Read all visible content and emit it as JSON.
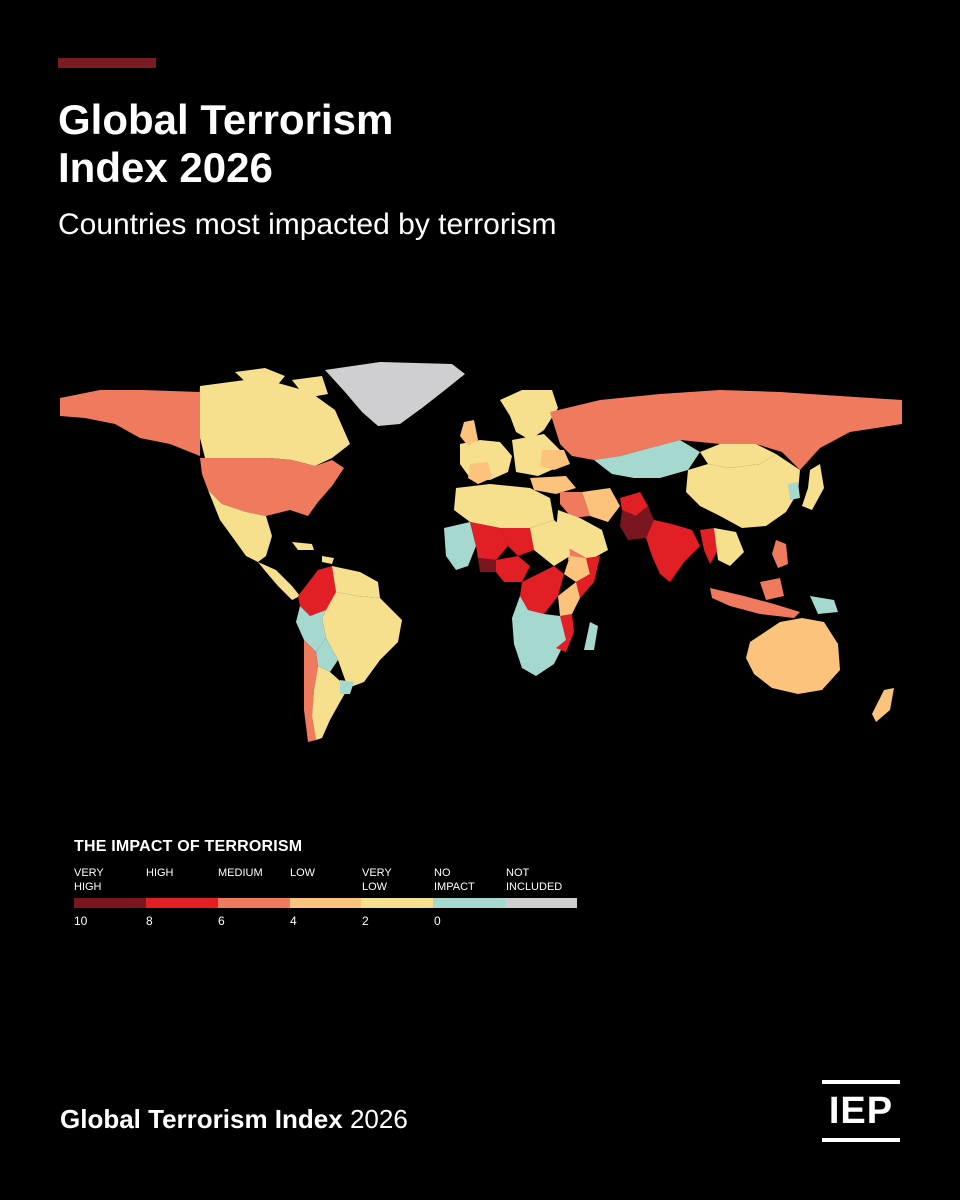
{
  "header": {
    "title_line1": "Global Terrorism",
    "title_line2": "Index 2026",
    "subtitle": "Countries most impacted by terrorism"
  },
  "colors": {
    "accent_bar": "#7a1c22",
    "very_high": "#7a1620",
    "high": "#e31f26",
    "medium": "#f07a5e",
    "low": "#fbc37c",
    "very_low": "#f6e08d",
    "no_impact": "#a5d9d0",
    "not_included": "#cfcfd2"
  },
  "legend": {
    "title": "THE IMPACT OF TERRORISM",
    "categories": [
      {
        "label_line1": "VERY",
        "label_line2": "HIGH"
      },
      {
        "label_line1": "HIGH",
        "label_line2": ""
      },
      {
        "label_line1": "MEDIUM",
        "label_line2": ""
      },
      {
        "label_line1": "LOW",
        "label_line2": ""
      },
      {
        "label_line1": "VERY",
        "label_line2": "LOW"
      },
      {
        "label_line1": "NO",
        "label_line2": "IMPACT"
      },
      {
        "label_line1": "NOT",
        "label_line2": "INCLUDED"
      }
    ],
    "ticks": [
      "10",
      "8",
      "6",
      "4",
      "2",
      "0"
    ]
  },
  "footer": {
    "text_bold": "Global Terrorism Index",
    "text_regular": "2026",
    "logo_text": "IEP"
  }
}
